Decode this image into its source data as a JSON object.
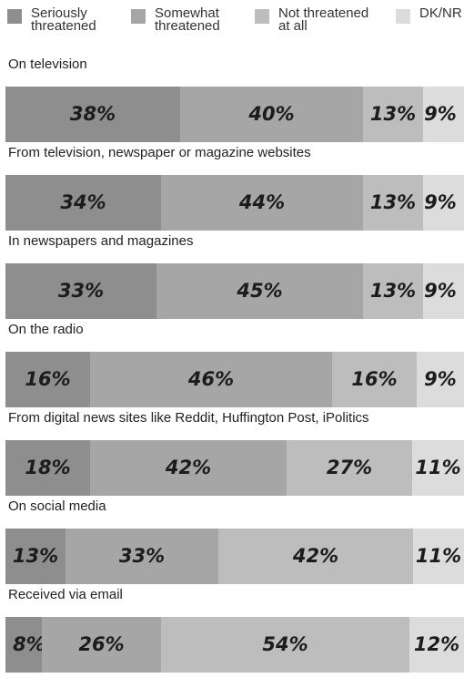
{
  "legend": [
    {
      "label": "Seriously\nthreatened",
      "color": "#8e8e8e"
    },
    {
      "label": "Somewhat\nthreatened",
      "color": "#a6a6a6"
    },
    {
      "label": "Not threatened\nat all",
      "color": "#bdbdbd"
    },
    {
      "label": "DK/NR",
      "color": "#dcdcdc"
    }
  ],
  "chart_data": {
    "type": "bar",
    "stacked": true,
    "orientation": "horizontal",
    "categories": [
      "On television",
      "From television, newspaper or magazine websites",
      "In newspapers and magazines",
      "On the radio",
      "From digital news sites like Reddit, Huffington Post, iPolitics",
      "On social media",
      "Received via email"
    ],
    "series": [
      {
        "name": "Seriously threatened",
        "color": "#8e8e8e",
        "values": [
          38,
          34,
          33,
          16,
          18,
          13,
          8
        ]
      },
      {
        "name": "Somewhat threatened",
        "color": "#a6a6a6",
        "values": [
          40,
          44,
          45,
          46,
          42,
          33,
          26
        ]
      },
      {
        "name": "Not threatened at all",
        "color": "#bdbdbd",
        "values": [
          13,
          13,
          13,
          16,
          27,
          42,
          54
        ]
      },
      {
        "name": "DK/NR",
        "color": "#dcdcdc",
        "values": [
          9,
          9,
          9,
          9,
          11,
          11,
          12
        ]
      }
    ],
    "value_suffix": "%",
    "xlim": [
      0,
      100
    ]
  }
}
